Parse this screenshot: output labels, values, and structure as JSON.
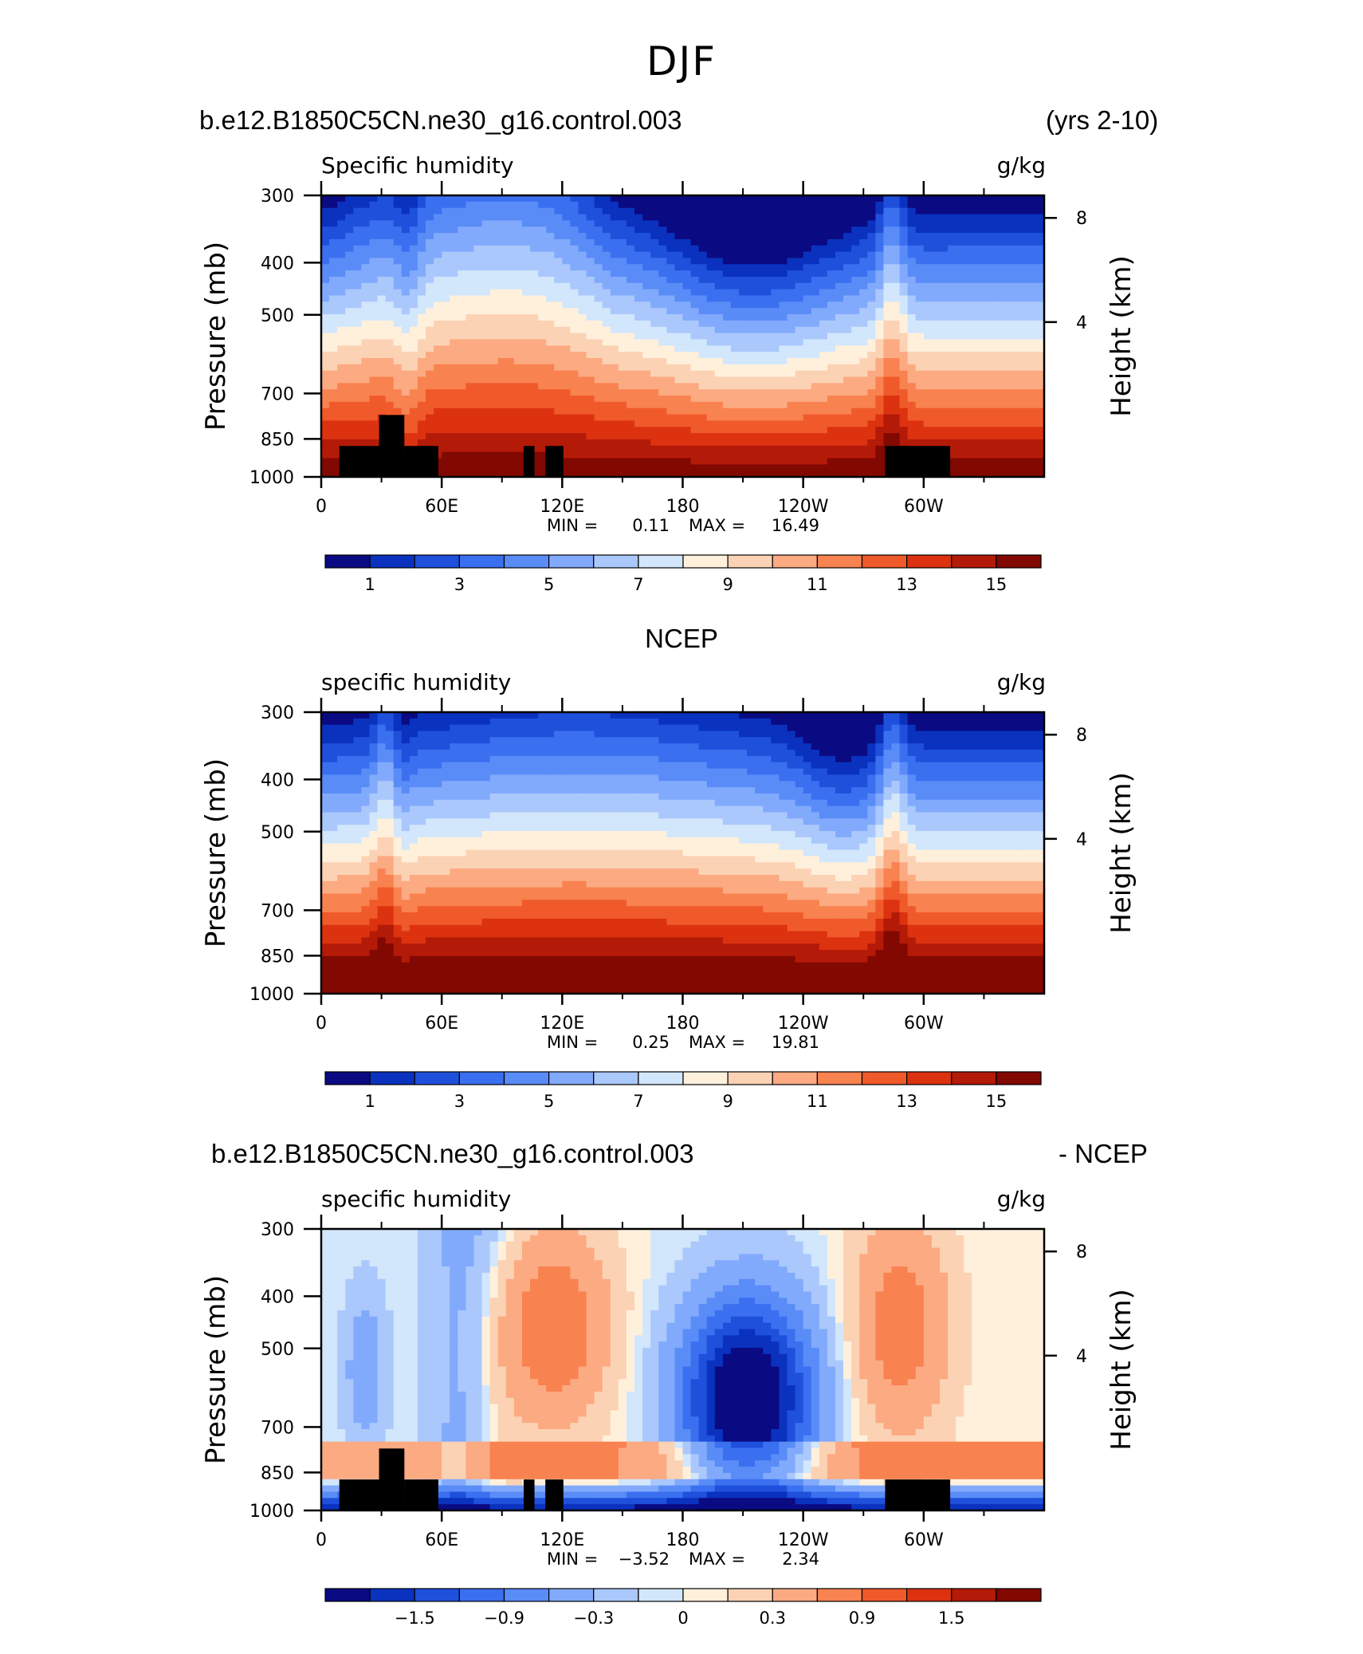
{
  "page_title": "DJF",
  "colors": {
    "levels_abs": [
      "#0a0a82",
      "#0a32be",
      "#1e50dc",
      "#3a70f0",
      "#5a8cf8",
      "#82aafc",
      "#aac8fc",
      "#d2e6fc",
      "#fff0dc",
      "#fcd2b4",
      "#fcaa82",
      "#f88250",
      "#f05a2a",
      "#dc3210",
      "#b41a08",
      "#820802"
    ],
    "levels_diff": [
      "#0a0a82",
      "#0a32be",
      "#1e50dc",
      "#3a70f0",
      "#5a8cf8",
      "#82aafc",
      "#aac8fc",
      "#d2e6fc",
      "#fff0dc",
      "#fcd2b4",
      "#fcaa82",
      "#f88250",
      "#f05a2a",
      "#dc3210",
      "#b41a08",
      "#820802"
    ],
    "terrain": "#000000"
  },
  "panels": [
    {
      "id": "model",
      "header_left": "b.e12.B1850C5CN.ne30_g16.control.003",
      "header_right": "(yrs 2-10)",
      "header_center": "",
      "chart_data": {
        "type": "heatmap",
        "title": "",
        "variable": "Specific humidity",
        "units": "g/kg",
        "xlabel": "",
        "ylabel": "Pressure (mb)",
        "y2label": "Height (km)",
        "x_ticks": [
          "0",
          "60E",
          "120E",
          "180",
          "120W",
          "60W"
        ],
        "y_ticks": [
          "300",
          "400",
          "500",
          "700",
          "850",
          "1000"
        ],
        "y2_ticks": [
          "8",
          "4"
        ],
        "min_label": "MIN =",
        "min_value": "0.11",
        "max_label": "MAX =",
        "max_value": "16.49",
        "colorbar_labels": [
          "1",
          "3",
          "5",
          "7",
          "9",
          "11",
          "13",
          "15"
        ],
        "shape": "model"
      }
    },
    {
      "id": "obs",
      "header_left": "",
      "header_right": "",
      "header_center": "NCEP",
      "chart_data": {
        "type": "heatmap",
        "title": "",
        "variable": "specific humidity",
        "units": "g/kg",
        "xlabel": "",
        "ylabel": "Pressure (mb)",
        "y2label": "Height (km)",
        "x_ticks": [
          "0",
          "60E",
          "120E",
          "180",
          "120W",
          "60W"
        ],
        "y_ticks": [
          "300",
          "400",
          "500",
          "700",
          "850",
          "1000"
        ],
        "y2_ticks": [
          "8",
          "4"
        ],
        "min_label": "MIN =",
        "min_value": "0.25",
        "max_label": "MAX =",
        "max_value": "19.81",
        "colorbar_labels": [
          "1",
          "3",
          "5",
          "7",
          "9",
          "11",
          "13",
          "15"
        ],
        "shape": "obs"
      }
    },
    {
      "id": "diff",
      "header_left": "b.e12.B1850C5CN.ne30_g16.control.003",
      "header_right": "- NCEP",
      "header_center": "",
      "chart_data": {
        "type": "heatmap",
        "title": "",
        "variable": "specific humidity",
        "units": "g/kg",
        "xlabel": "",
        "ylabel": "Pressure (mb)",
        "y2label": "Height (km)",
        "x_ticks": [
          "0",
          "60E",
          "120E",
          "180",
          "120W",
          "60W"
        ],
        "y_ticks": [
          "300",
          "400",
          "500",
          "700",
          "850",
          "1000"
        ],
        "y2_ticks": [
          "8",
          "4"
        ],
        "min_label": "MIN =",
        "min_value": "−3.52",
        "max_label": "MAX =",
        "max_value": "2.34",
        "colorbar_labels": [
          "−1.5",
          "−0.9",
          "−0.3",
          "0",
          "0.3",
          "0.9",
          "1.5"
        ],
        "shape": "diff"
      }
    }
  ]
}
